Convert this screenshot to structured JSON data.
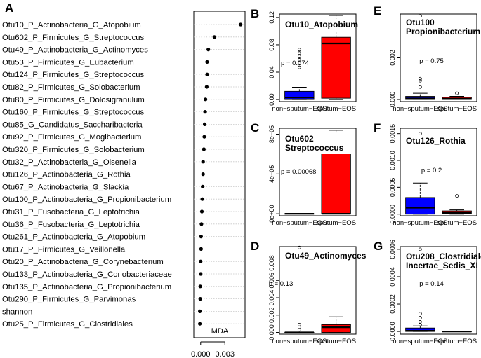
{
  "panel_a": {
    "letter": "A",
    "xlabel": "MDA",
    "ticks": [
      0.0,
      0.003
    ],
    "tick_labels": [
      "0.000",
      "0.003"
    ]
  },
  "chart_data": [
    {
      "panel": "A",
      "type": "scatter",
      "xlabel": "MDA",
      "xlim": [
        -0.00085,
        0.0055
      ],
      "grid": true,
      "points": [
        {
          "label": "Otu10_P_Actinobacteria_G_Atopobium",
          "value": 0.00495
        },
        {
          "label": "Otu602_P_Firmicutes_G_Streptococcus",
          "value": 0.0017
        },
        {
          "label": "Otu49_P_Actinobacteria_G_Actinomyces",
          "value": 0.00095
        },
        {
          "label": "Otu53_P_Firmicutes_G_Eubacterium",
          "value": 0.0008
        },
        {
          "label": "Otu124_P_Firmicutes_G_Streptococcus",
          "value": 0.0008
        },
        {
          "label": "Otu82_P_Firmicutes_G_Solobacterium",
          "value": 0.00075
        },
        {
          "label": "Otu80_P_Firmicutes_G_Dolosigranulum",
          "value": 0.0006
        },
        {
          "label": "Otu160_P_Firmicutes_G_Streptococcus",
          "value": 0.00055
        },
        {
          "label": "Otu85_G_Candidatus_Saccharibacteria",
          "value": 0.0005
        },
        {
          "label": "Otu92_P_Firmicutes_G_Mogibacterium",
          "value": 0.00045
        },
        {
          "label": "Otu320_P_Firmicutes_G_Solobacterium",
          "value": 0.0004
        },
        {
          "label": "Otu32_P_Actinobacteria_G_Olsenella",
          "value": 0.0003
        },
        {
          "label": "Otu126_P_Actinobacteria_G_Rothia",
          "value": 0.0003
        },
        {
          "label": "Otu67_P_Actinobacteria_G_Slackia",
          "value": 0.00025
        },
        {
          "label": "Otu100_P_Actinobacteria_G_Propionibacterium",
          "value": 0.0002
        },
        {
          "label": "Otu31_P_Fusobacteria_G_Leptotrichia",
          "value": 0.00015
        },
        {
          "label": "Otu36_P_Fusobacteria_G_Leptotrichia",
          "value": 0.0001
        },
        {
          "label": "Otu261_P_Actinobacteria_G_Atopobium",
          "value": 5e-05
        },
        {
          "label": "Otu17_P_Firmicutes_G_Veillonella",
          "value": 5e-05
        },
        {
          "label": "Otu20_P_Actinobacteria_G_Corynebacterium",
          "value": 0.0
        },
        {
          "label": "Otu133_P_Actinobacteria_G_Coriobacteriaceae",
          "value": 0.0
        },
        {
          "label": "Otu135_P_Actinobacteria_G_Propionibacterium",
          "value": -5e-05
        },
        {
          "label": "Otu290_P_Firmicutes_G_Parvimonas",
          "value": -5e-05
        },
        {
          "label": "shannon",
          "value": -0.0001
        },
        {
          "label": "Otu25_P_Firmicutes_G_Clostridiales",
          "value": -0.0001
        }
      ]
    },
    {
      "panel": "B",
      "type": "box",
      "title": [
        "Otu10_Atopobium"
      ],
      "pvalue": "p = 0.074",
      "categories": [
        "non−sputum−EOS",
        "sputum−EOS"
      ],
      "colors": [
        "#0000ff",
        "#ff0000"
      ],
      "ylim": [
        -0.003,
        0.125
      ],
      "yticks": [
        0.0,
        0.04,
        0.08,
        0.12
      ],
      "ytick_labels": [
        "0.00",
        "0.04",
        "0.08",
        "0.12"
      ],
      "boxes": [
        {
          "whisker_low": 0.0,
          "q1": 0.0,
          "median": 0.003,
          "q3": 0.012,
          "whisker_high": 0.018,
          "outliers": [
            0.047,
            0.053,
            0.058,
            0.063,
            0.068,
            0.073
          ]
        },
        {
          "whisker_low": 0.0,
          "q1": 0.002,
          "median": 0.082,
          "q3": 0.091,
          "whisker_high": 0.123,
          "outliers": []
        }
      ]
    },
    {
      "panel": "C",
      "type": "box",
      "title": [
        "Otu602",
        "Streptococcus"
      ],
      "pvalue": "p = 0.00068",
      "categories": [
        "non−sputum−EOS",
        "sputum−EOS"
      ],
      "colors": [
        "#0000ff",
        "#ff0000"
      ],
      "ylim": [
        -2e-06,
        8.6e-05
      ],
      "yticks": [
        0,
        4e-05,
        8e-05
      ],
      "ytick_labels": [
        "0e+00",
        "4e−05",
        "8e−05"
      ],
      "boxes": [
        {
          "whisker_low": 0.0,
          "q1": 0.0,
          "median": 0.0,
          "q3": 0.0,
          "whisker_high": 0.0,
          "outliers": []
        },
        {
          "whisker_low": 0.0,
          "q1": 0.0,
          "median": 0.0,
          "q3": 6.5e-05,
          "whisker_high": 8.4e-05,
          "outliers": []
        }
      ]
    },
    {
      "panel": "D",
      "type": "box",
      "title": [
        "Otu49_Actinomyces"
      ],
      "pvalue": "p = 0.13",
      "categories": [
        "non−sputum−EOS",
        "sputum−EOS"
      ],
      "colors": [
        "#0000ff",
        "#ff0000"
      ],
      "ylim": [
        -0.0002,
        0.0099
      ],
      "yticks": [
        0.0,
        0.002,
        0.004,
        0.006,
        0.008
      ],
      "ytick_labels": [
        "0.000",
        "0.002",
        "0.004",
        "0.006",
        "0.008"
      ],
      "boxes": [
        {
          "whisker_low": 0.0,
          "q1": 0.0,
          "median": 0.0,
          "q3": 0.0,
          "whisker_high": 0.0,
          "outliers": [
            0.0003,
            0.0006,
            0.0009,
            0.0098
          ]
        },
        {
          "whisker_low": 0.0,
          "q1": 0.0,
          "median": 0.0006,
          "q3": 0.0009,
          "whisker_high": 0.0018,
          "outliers": []
        }
      ]
    },
    {
      "panel": "E",
      "type": "box",
      "title": [
        "Otu100",
        "Propionibacterium"
      ],
      "pvalue": "p = 0.75",
      "categories": [
        "non−sputum−EOS",
        "sputum−EOS"
      ],
      "colors": [
        "#0000ff",
        "#ff0000"
      ],
      "ylim": [
        -0.0001,
        0.0041
      ],
      "yticks": [
        0.0,
        0.002
      ],
      "ytick_labels": [
        "0.000",
        "0.002"
      ],
      "boxes": [
        {
          "whisker_low": 0.0,
          "q1": 0.0,
          "median": 5e-05,
          "q3": 0.00015,
          "whisker_high": 0.0003,
          "outliers": [
            0.0006,
            0.0009,
            0.001,
            0.004
          ]
        },
        {
          "whisker_low": 0.0,
          "q1": 0.0,
          "median": 3e-05,
          "q3": 0.0001,
          "whisker_high": 0.00015,
          "outliers": [
            0.0003
          ]
        }
      ]
    },
    {
      "panel": "F",
      "type": "box",
      "title": [
        "Otu126_Rothia"
      ],
      "pvalue": "p = 0.2",
      "categories": [
        "non−sputum−EOS",
        "sputum−EOS"
      ],
      "colors": [
        "#0000ff",
        "#ff0000"
      ],
      "ylim": [
        -3e-05,
        0.0016
      ],
      "yticks": [
        0.0,
        0.0005,
        0.001,
        0.0015
      ],
      "ytick_labels": [
        "0.0000",
        "0.0005",
        "0.0010",
        "0.0015"
      ],
      "boxes": [
        {
          "whisker_low": 0.0,
          "q1": 0.0,
          "median": 0.00012,
          "q3": 0.00031,
          "whisker_high": 0.00058,
          "outliers": [
            0.0015
          ]
        },
        {
          "whisker_low": 0.0,
          "q1": 1e-05,
          "median": 3e-05,
          "q3": 6e-05,
          "whisker_high": 8e-05,
          "outliers": [
            0.00034
          ]
        }
      ]
    },
    {
      "panel": "G",
      "type": "box",
      "title": [
        "Otu208_Clostridiales_",
        "Incertae_Sedis_XI"
      ],
      "pvalue": "p = 0.14",
      "categories": [
        "non−sputum−EOS",
        "sputum−EOS"
      ],
      "colors": [
        "#0000ff",
        "#ff0000"
      ],
      "ylim": [
        -2e-05,
        0.00062
      ],
      "yticks": [
        0.0,
        0.0002,
        0.0004,
        0.0006
      ],
      "ytick_labels": [
        "0.0000",
        "0.0002",
        "0.0004",
        "0.0006"
      ],
      "boxes": [
        {
          "whisker_low": 0.0,
          "q1": 0.0,
          "median": 5e-06,
          "q3": 2.5e-05,
          "whisker_high": 4e-05,
          "outliers": [
            5e-05,
            7e-05,
            0.0001,
            0.00013,
            0.0006
          ]
        },
        {
          "whisker_low": 0.0,
          "q1": 0.0,
          "median": 0.0,
          "q3": 0.0,
          "whisker_high": 0.0,
          "outliers": []
        }
      ]
    }
  ]
}
